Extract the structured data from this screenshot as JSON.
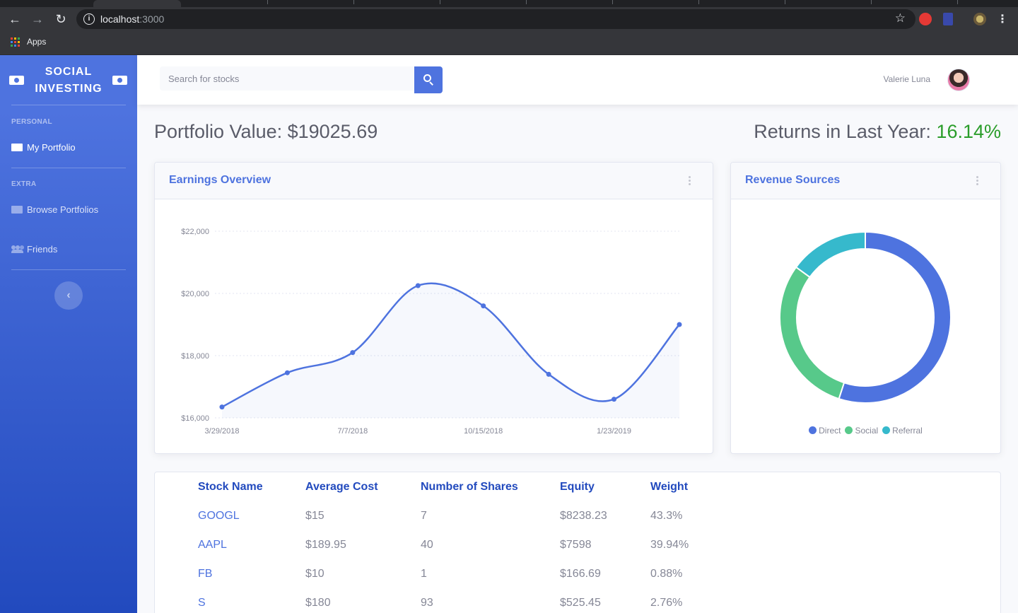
{
  "browser": {
    "url_host": "localhost",
    "url_port": ":3000",
    "bookmarks_apps": "Apps"
  },
  "sidebar": {
    "brand_line1": "SOCIAL",
    "brand_line2": "INVESTING",
    "section_personal": "PERSONAL",
    "section_extra": "EXTRA",
    "items": [
      {
        "label": "My Portfolio",
        "icon": "folder-icon"
      },
      {
        "label": "Browse Portfolios",
        "icon": "folder-open-icon"
      },
      {
        "label": "Friends",
        "icon": "users-icon"
      }
    ],
    "toggle_icon": "‹"
  },
  "topbar": {
    "search_placeholder": "Search for stocks",
    "user_name": "Valerie Luna"
  },
  "summary": {
    "portfolio_label": "Portfolio Value: $19025.69",
    "returns_label": "Returns in Last Year: ",
    "returns_value": "16.14%"
  },
  "earnings": {
    "title": "Earnings Overview"
  },
  "revenue": {
    "title": "Revenue Sources"
  },
  "colors": {
    "primary": "#4e73df",
    "success": "#1cc88a",
    "social": "#57c98a",
    "info": "#36b9cc",
    "positive": "#2a9d2a"
  },
  "chart_data": [
    {
      "type": "area",
      "title": "Earnings Overview",
      "x": [
        "3/29/2018",
        "",
        "7/7/2018",
        "",
        "10/15/2018",
        "",
        "1/23/2019",
        ""
      ],
      "x_tick_labels": [
        "3/29/2018",
        "7/7/2018",
        "10/15/2018",
        "1/23/2019"
      ],
      "y_tick_labels": [
        "$16,000",
        "$18,000",
        "$20,000",
        "$22,000"
      ],
      "series": [
        {
          "values": [
            16350,
            17450,
            18100,
            20250,
            19600,
            17400,
            16600,
            19000
          ]
        }
      ],
      "ylim": [
        16000,
        22000
      ],
      "grid": true
    },
    {
      "type": "pie",
      "title": "Revenue Sources",
      "labels": [
        "Direct",
        "Social",
        "Referral"
      ],
      "values": [
        55,
        30,
        15
      ],
      "colors": [
        "#4e73df",
        "#57c98a",
        "#36b9cc"
      ],
      "legend_position": "bottom"
    }
  ],
  "table": {
    "headers": [
      "Stock Name",
      "Average Cost",
      "Number of Shares",
      "Equity",
      "Weight"
    ],
    "rows": [
      [
        "GOOGL",
        "$15",
        "7",
        "$8238.23",
        "43.3%"
      ],
      [
        "AAPL",
        "$189.95",
        "40",
        "$7598",
        "39.94%"
      ],
      [
        "FB",
        "$10",
        "1",
        "$166.69",
        "0.88%"
      ],
      [
        "S",
        "$180",
        "93",
        "$525.45",
        "2.76%"
      ]
    ]
  }
}
